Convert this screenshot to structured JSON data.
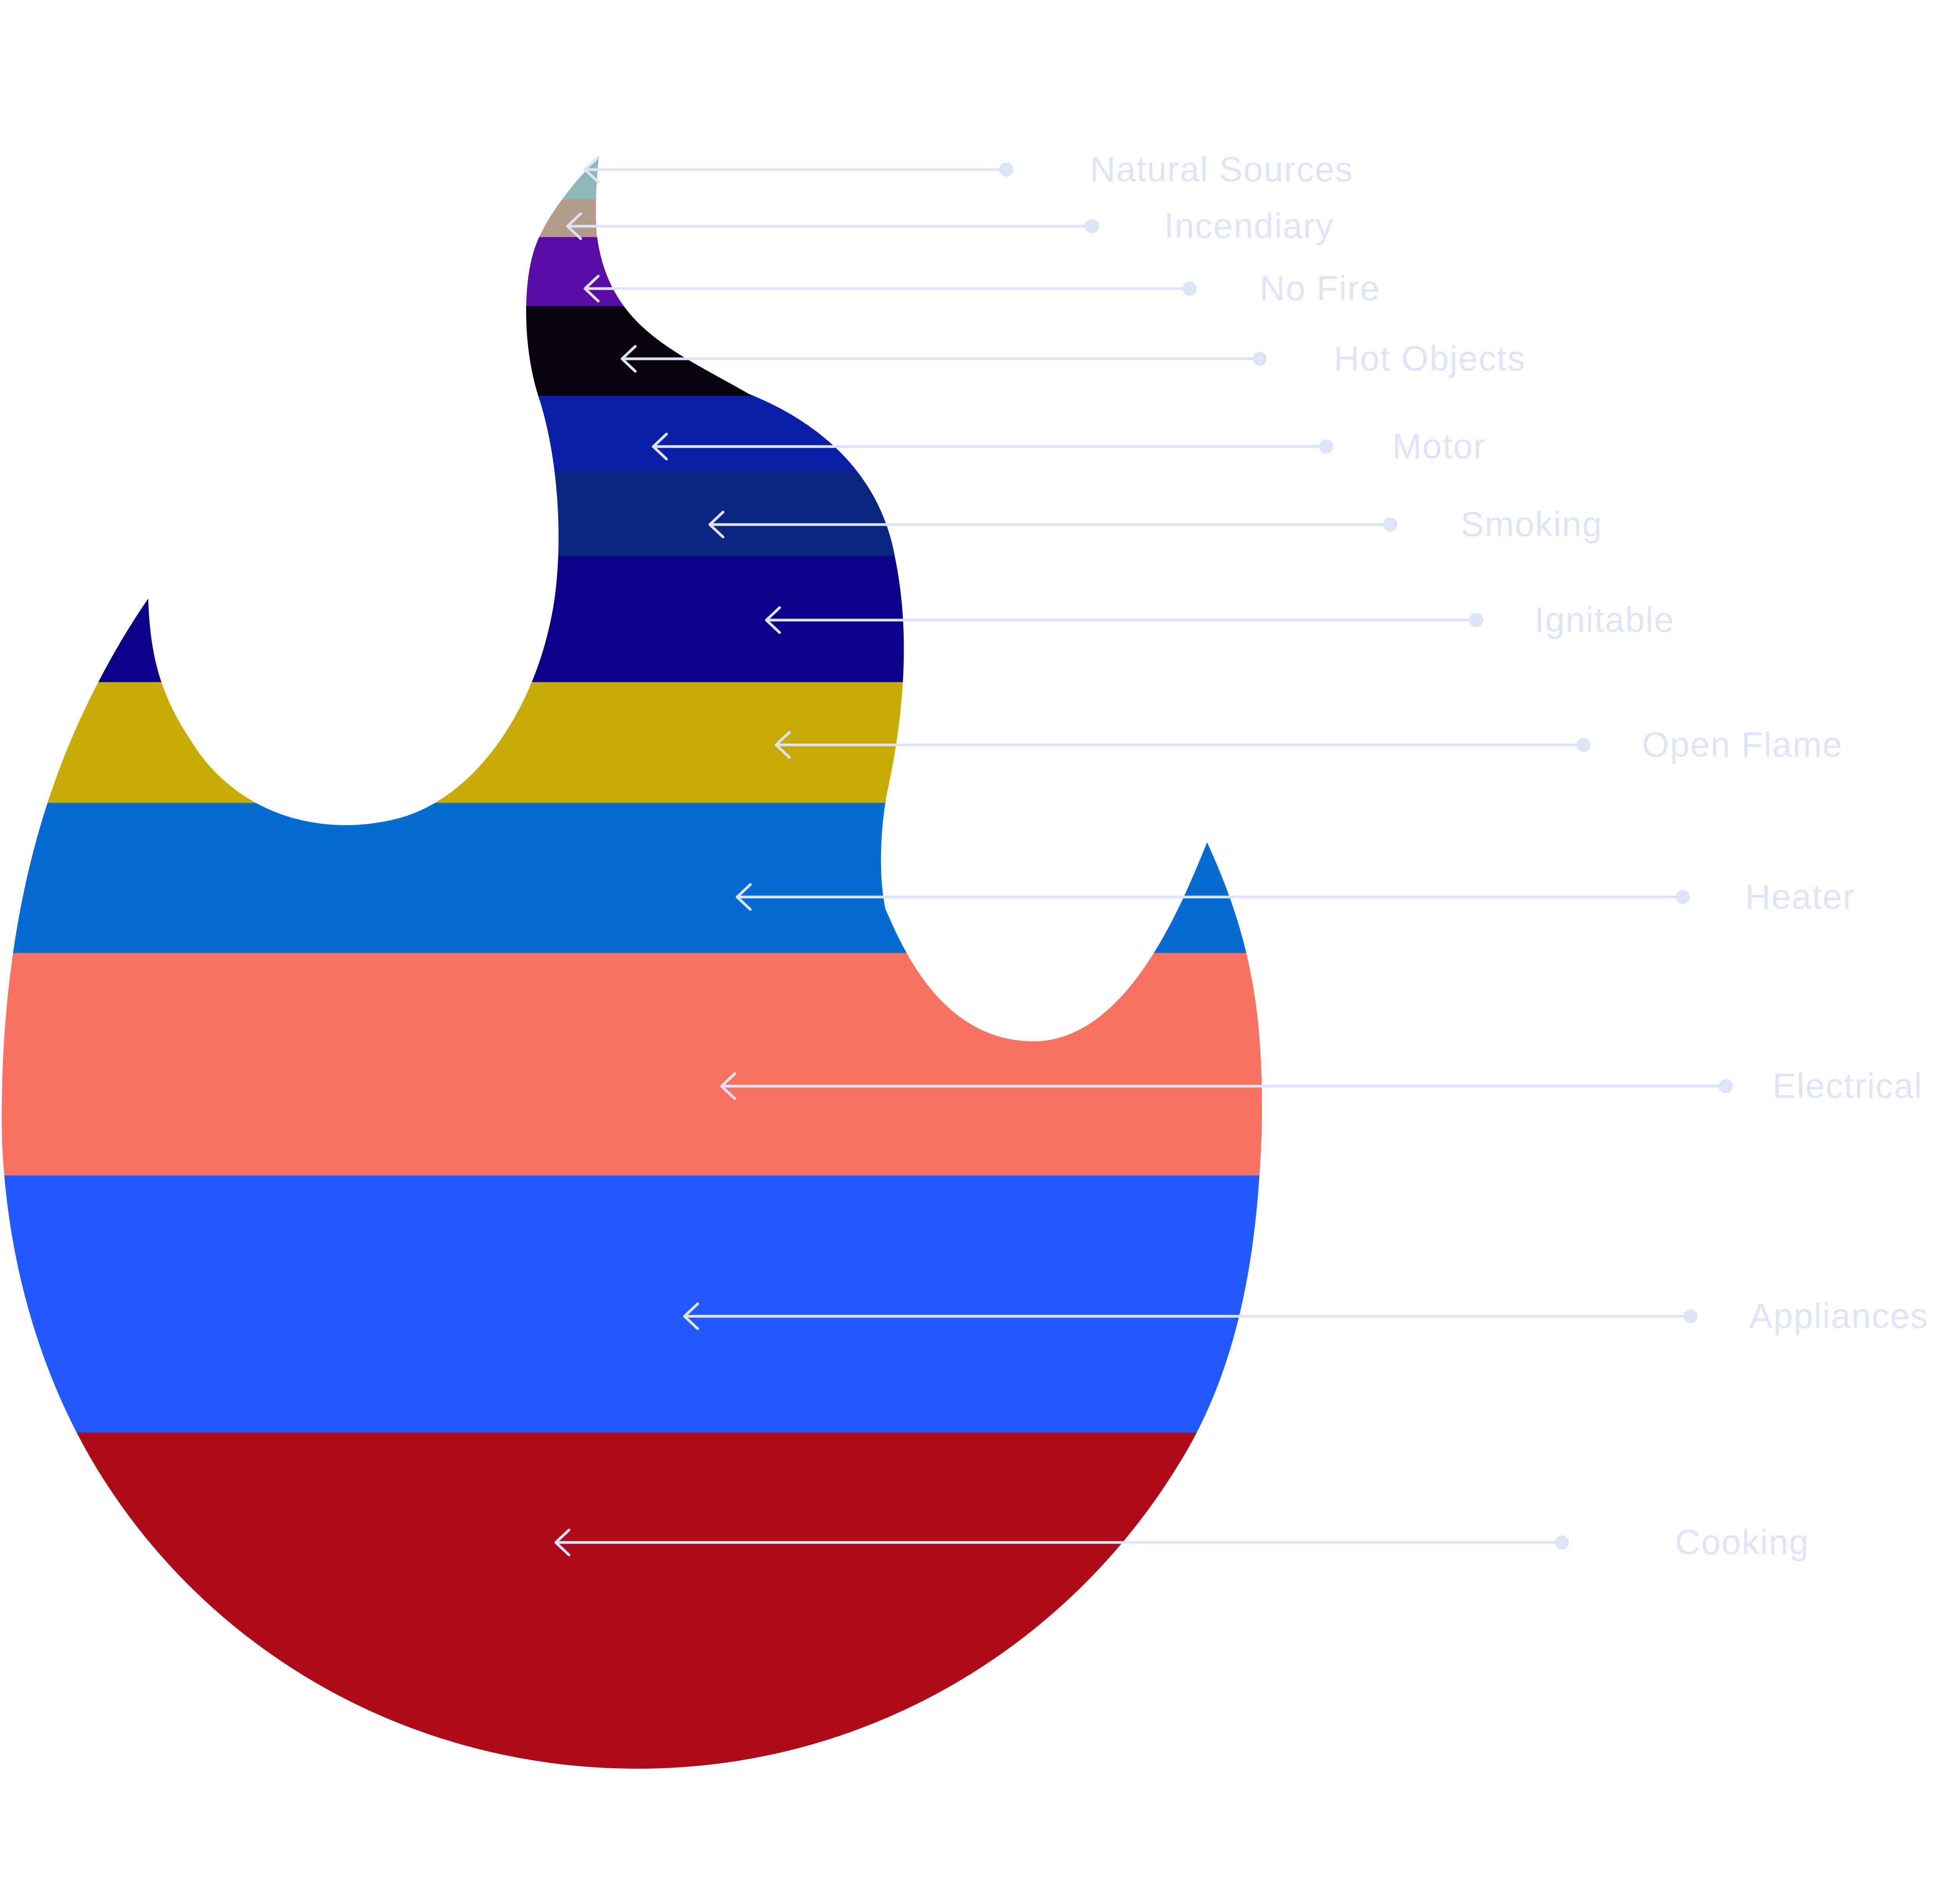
{
  "chart_data": {
    "type": "area",
    "title": "",
    "xlabel": "",
    "ylabel": "",
    "grid": false,
    "legend": "none",
    "categories": [
      "Natural Sources",
      "Incendiary",
      "No Fire",
      "Hot Objects",
      "Motor",
      "Smoking",
      "Ignitable",
      "Open Flame",
      "Heater",
      "Electrical",
      "Appliances",
      "Cooking"
    ],
    "values": [
      2.5,
      2.2,
      4.0,
      5.2,
      4.4,
      4.9,
      7.3,
      7.0,
      8.7,
      12.9,
      14.9,
      19.6
    ],
    "colors": [
      "#8fb8ba",
      "#b39b87",
      "#5b0ca7",
      "#07040f",
      "#0b1fa8",
      "#0c2582",
      "#0b0087",
      "#c9aa02",
      "#046bd4",
      "#f97261",
      "#215bff",
      "#ae0c1a"
    ],
    "label_color": "#dfe5f8",
    "leader_color": "#dce3f9"
  }
}
